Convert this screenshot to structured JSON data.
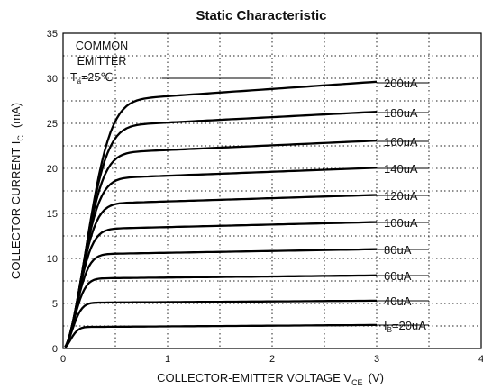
{
  "chart_data": {
    "type": "line",
    "title": "Static Characteristic",
    "xlabel": {
      "main": "COLLECTOR-EMITTER VOLTAGE   V",
      "sub": "CE",
      "unit": "(V)"
    },
    "ylabel": {
      "main": "COLLECTOR CURRENT   I",
      "sub": "C",
      "unit": "(mA)"
    },
    "xlim": [
      0,
      4
    ],
    "ylim": [
      0,
      35
    ],
    "x_ticks": [
      "0",
      "1",
      "2",
      "3",
      "4"
    ],
    "y_ticks": [
      "0",
      "5",
      "10",
      "15",
      "20",
      "25",
      "30",
      "35"
    ],
    "grid": true,
    "annotation": {
      "line1": "COMMON",
      "line2": "EMITTER",
      "temp_prefix": "T",
      "temp_sub": "a",
      "temp_value": "=25℃"
    },
    "series": [
      {
        "name": "20uA",
        "label": "=20uA",
        "label_prefix": "I",
        "label_sub": "B",
        "sat": 2.4,
        "end": 2.6
      },
      {
        "name": "40uA",
        "label": "40uA",
        "sat": 5.1,
        "end": 5.3
      },
      {
        "name": "60uA",
        "label": "60uA",
        "sat": 7.8,
        "end": 8.1
      },
      {
        "name": "80uA",
        "label": "80uA",
        "sat": 10.5,
        "end": 11.0
      },
      {
        "name": "100uA",
        "label": "100uA",
        "sat": 13.3,
        "end": 14.0
      },
      {
        "name": "120uA",
        "label": "120uA",
        "sat": 16.1,
        "end": 17.0
      },
      {
        "name": "140uA",
        "label": "140uA",
        "sat": 18.9,
        "end": 20.0
      },
      {
        "name": "160uA",
        "label": "160uA",
        "sat": 21.7,
        "end": 23.0
      },
      {
        "name": "180uA",
        "label": "180uA",
        "sat": 24.7,
        "end": 26.2
      },
      {
        "name": "200uA",
        "label": "200uA",
        "sat": 27.5,
        "end": 29.5
      }
    ]
  }
}
